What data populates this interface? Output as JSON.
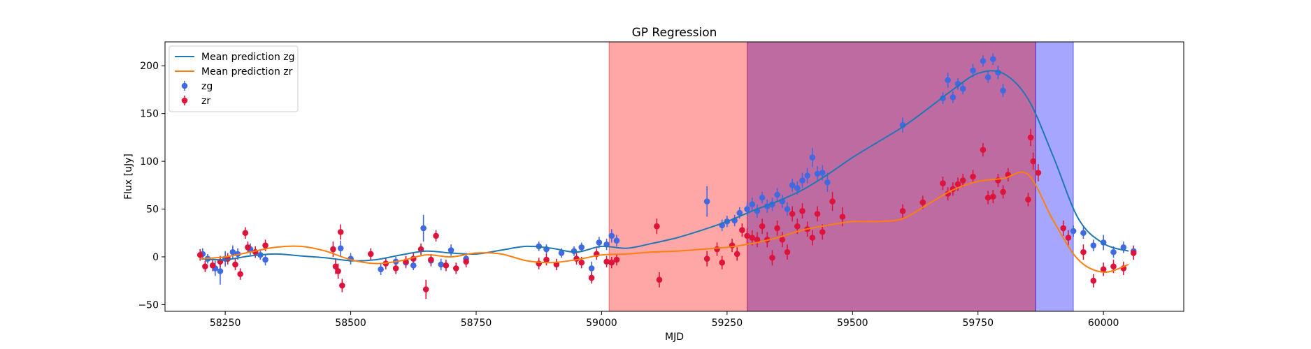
{
  "chart_data": {
    "type": "scatter",
    "title": "GP Regression",
    "xlabel": "MJD",
    "ylabel": "Flux [uJy]",
    "xlim": [
      58130,
      60160
    ],
    "ylim": [
      -57,
      225
    ],
    "xticks": [
      58250,
      58500,
      58750,
      59000,
      59250,
      59500,
      59750,
      60000
    ],
    "xtick_labels": [
      "58250",
      "58500",
      "58750",
      "59000",
      "59250",
      "59500",
      "59750",
      "60000"
    ],
    "yticks": [
      -50,
      0,
      50,
      100,
      150,
      200
    ],
    "ytick_labels": [
      "−50",
      "0",
      "50",
      "100",
      "150",
      "200"
    ],
    "grid": false,
    "legend_position": "top-left",
    "shaded_regions": [
      {
        "x0": 59015,
        "x1": 59290,
        "color": "#ff0000",
        "alpha": 0.35
      },
      {
        "x0": 59290,
        "x1": 59865,
        "color": "#9b1b6e",
        "alpha": 0.65
      },
      {
        "x0": 59865,
        "x1": 59940,
        "color": "#0000ff",
        "alpha": 0.35
      }
    ],
    "lines": [
      {
        "name": "Mean prediction zg",
        "color": "#1f77b4",
        "x": [
          58200,
          58250,
          58300,
          58350,
          58400,
          58450,
          58500,
          58550,
          58600,
          58650,
          58700,
          58750,
          58800,
          58850,
          58900,
          58950,
          59000,
          59050,
          59100,
          59150,
          59200,
          59250,
          59300,
          59350,
          59400,
          59450,
          59500,
          59550,
          59600,
          59650,
          59700,
          59750,
          59800,
          59850,
          59900,
          59950,
          60000,
          60050
        ],
        "y": [
          -2,
          -3,
          1,
          3,
          1,
          -1,
          -4,
          -3,
          2,
          6,
          4,
          3,
          7,
          11,
          9,
          5,
          11,
          9,
          14,
          20,
          28,
          37,
          48,
          58,
          70,
          86,
          104,
          120,
          136,
          155,
          175,
          192,
          192,
          165,
          105,
          40,
          14,
          6
        ]
      },
      {
        "name": "Mean prediction zr",
        "color": "#ff7f0e",
        "x": [
          58200,
          58250,
          58300,
          58350,
          58400,
          58450,
          58500,
          58550,
          58600,
          58650,
          58700,
          58750,
          58800,
          58850,
          58900,
          58950,
          59000,
          59050,
          59100,
          59150,
          59200,
          59250,
          59300,
          59350,
          59400,
          59450,
          59500,
          59550,
          59600,
          59650,
          59700,
          59750,
          59800,
          59850,
          59900,
          59950,
          60000,
          60050
        ],
        "y": [
          -2,
          0,
          5,
          10,
          11,
          6,
          -3,
          -7,
          -4,
          2,
          0,
          4,
          3,
          -4,
          -6,
          -3,
          2,
          3,
          5,
          6,
          8,
          10,
          14,
          20,
          28,
          33,
          37,
          37,
          40,
          55,
          70,
          79,
          82,
          86,
          38,
          -3,
          -16,
          -8
        ]
      }
    ],
    "series": [
      {
        "name": "zg",
        "color": "#4169e1",
        "x": [
          58205,
          58215,
          58230,
          58240,
          58250,
          58265,
          58275,
          58300,
          58320,
          58330,
          58480,
          58500,
          58560,
          58590,
          58610,
          58625,
          58645,
          58660,
          58680,
          58700,
          58730,
          58875,
          58890,
          58920,
          58945,
          58960,
          58980,
          58995,
          59010,
          59020,
          59030,
          59210,
          59240,
          59250,
          59265,
          59275,
          59290,
          59300,
          59310,
          59320,
          59330,
          59340,
          59350,
          59360,
          59370,
          59380,
          59390,
          59400,
          59410,
          59420,
          59430,
          59440,
          59450,
          59600,
          59680,
          59690,
          59700,
          59710,
          59720,
          59740,
          59760,
          59770,
          59780,
          59790,
          59800,
          59940,
          59960,
          59980,
          60000,
          60020,
          60040,
          60060
        ],
        "y": [
          3,
          -2,
          -12,
          -15,
          -2,
          5,
          3,
          8,
          2,
          -3,
          9,
          -2,
          -13,
          -5,
          -6,
          -9,
          30,
          -4,
          -8,
          7,
          -2,
          11,
          8,
          4,
          6,
          10,
          -12,
          15,
          13,
          22,
          17,
          58,
          33,
          37,
          38,
          46,
          50,
          55,
          48,
          62,
          53,
          55,
          65,
          58,
          50,
          75,
          72,
          80,
          85,
          104,
          87,
          88,
          78,
          138,
          166,
          185,
          167,
          181,
          176,
          195,
          205,
          188,
          207,
          193,
          174,
          27,
          25,
          12,
          15,
          5,
          10,
          6
        ],
        "err": [
          6,
          5,
          8,
          14,
          8,
          7,
          6,
          6,
          5,
          6,
          8,
          6,
          6,
          5,
          6,
          5,
          14,
          6,
          6,
          6,
          6,
          5,
          5,
          5,
          5,
          5,
          7,
          6,
          6,
          7,
          6,
          16,
          6,
          6,
          6,
          6,
          7,
          7,
          7,
          6,
          7,
          7,
          7,
          7,
          7,
          7,
          7,
          8,
          8,
          10,
          8,
          8,
          10,
          8,
          6,
          8,
          6,
          6,
          6,
          7,
          6,
          6,
          6,
          7,
          7,
          6,
          6,
          6,
          8,
          6,
          6,
          6
        ]
      },
      {
        "name": "zr",
        "color": "#dc143c",
        "x": [
          58200,
          58210,
          58225,
          58240,
          58255,
          58270,
          58280,
          58290,
          58295,
          58310,
          58330,
          58465,
          58470,
          58475,
          58480,
          58483,
          58540,
          58570,
          58590,
          58610,
          58625,
          58640,
          58650,
          58660,
          58670,
          58690,
          58710,
          58730,
          58875,
          58890,
          58910,
          58950,
          58960,
          58980,
          58990,
          59010,
          59020,
          59030,
          59110,
          59115,
          59210,
          59230,
          59240,
          59260,
          59270,
          59280,
          59290,
          59300,
          59310,
          59320,
          59330,
          59340,
          59350,
          59360,
          59370,
          59380,
          59390,
          59400,
          59410,
          59420,
          59430,
          59440,
          59460,
          59480,
          59600,
          59640,
          59680,
          59690,
          59700,
          59710,
          59720,
          59740,
          59760,
          59770,
          59780,
          59790,
          59800,
          59810,
          59850,
          59855,
          59860,
          59870,
          59920,
          59930,
          59960,
          59980,
          60000,
          60020,
          60040,
          60060
        ],
        "y": [
          2,
          -10,
          -9,
          -5,
          -2,
          -8,
          -18,
          25,
          10,
          5,
          12,
          8,
          -10,
          -15,
          26,
          -30,
          3,
          -7,
          -12,
          -5,
          -2,
          8,
          -34,
          -3,
          22,
          -9,
          -12,
          -5,
          -7,
          -3,
          -8,
          -2,
          -6,
          -22,
          3,
          -5,
          -6,
          -3,
          32,
          -24,
          -2,
          8,
          -6,
          12,
          3,
          28,
          22,
          20,
          18,
          32,
          18,
          -1,
          30,
          18,
          5,
          45,
          32,
          48,
          29,
          20,
          45,
          26,
          58,
          42,
          48,
          57,
          77,
          66,
          71,
          76,
          80,
          84,
          112,
          62,
          63,
          80,
          68,
          86,
          60,
          125,
          100,
          88,
          30,
          20,
          5,
          -25,
          -13,
          -10,
          -12,
          4
        ],
        "err": [
          6,
          6,
          6,
          6,
          6,
          6,
          6,
          6,
          6,
          6,
          6,
          8,
          8,
          8,
          8,
          7,
          6,
          6,
          6,
          6,
          6,
          6,
          10,
          6,
          6,
          6,
          6,
          6,
          6,
          6,
          6,
          6,
          6,
          6,
          6,
          6,
          6,
          6,
          8,
          8,
          8,
          7,
          7,
          7,
          7,
          7,
          8,
          8,
          8,
          8,
          8,
          8,
          8,
          8,
          8,
          8,
          8,
          8,
          8,
          8,
          8,
          8,
          10,
          10,
          7,
          7,
          7,
          7,
          7,
          7,
          7,
          7,
          7,
          7,
          7,
          7,
          7,
          7,
          7,
          9,
          9,
          9,
          8,
          8,
          8,
          7,
          7,
          7,
          7,
          7
        ]
      }
    ]
  }
}
